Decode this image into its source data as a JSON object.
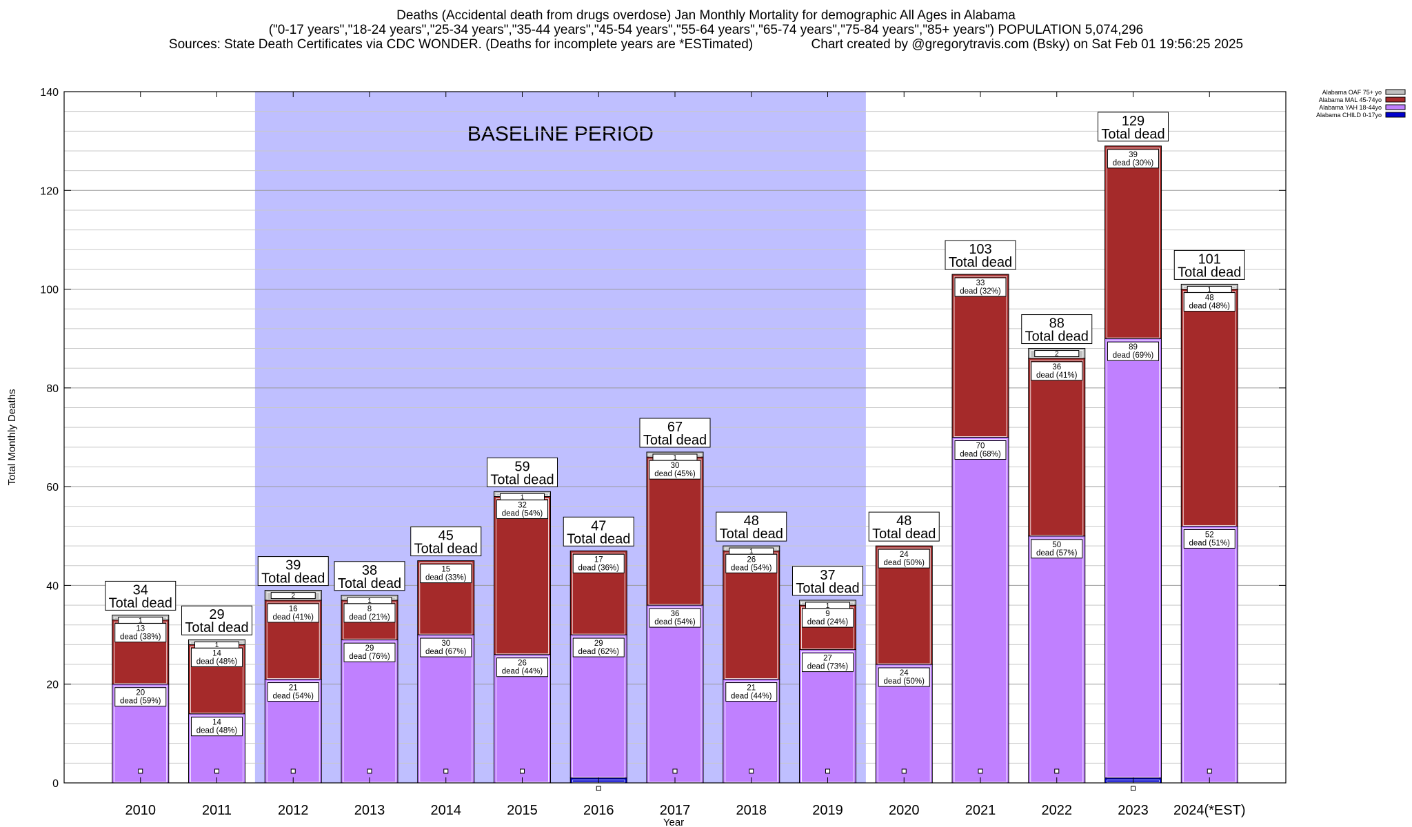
{
  "header": {
    "line1": "Deaths (Accidental death from drugs overdose) Jan Monthly Mortality for demographic All Ages in Alabama",
    "line2": "(\"0-17 years\",\"18-24 years\",\"25-34 years\",\"35-44 years\",\"45-54 years\",\"55-64 years\",\"65-74 years\",\"75-84 years\",\"85+ years\") POPULATION 5,074,296",
    "line3": "Sources: State Death Certificates via CDC WONDER. (Deaths for incomplete years are *ESTimated)                Chart created by @gregorytravis.com (Bsky) on Sat Feb 01 19:56:25 2025"
  },
  "chart_data": {
    "type": "bar",
    "stacked": true,
    "xlabel": "Year",
    "ylabel": "Total Monthly Deaths",
    "ylim": [
      0,
      140
    ],
    "yticks": [
      0,
      20,
      40,
      60,
      80,
      100,
      120,
      140
    ],
    "grid": true,
    "legend_position": "top-right",
    "baseline_label": "BASELINE PERIOD",
    "baseline_range": [
      "2012",
      "2019"
    ],
    "total_suffix": "Total dead",
    "categories": [
      "2010",
      "2011",
      "2012",
      "2013",
      "2014",
      "2015",
      "2016",
      "2017",
      "2018",
      "2019",
      "2020",
      "2021",
      "2022",
      "2023",
      "2024(*EST)"
    ],
    "totals": [
      34,
      29,
      39,
      38,
      45,
      59,
      47,
      67,
      48,
      37,
      48,
      103,
      88,
      129,
      101
    ],
    "series": [
      {
        "name": "Alabama CHILD 0-17yo",
        "color": "#0000cc",
        "values": [
          0,
          0,
          0,
          0,
          0,
          0,
          1,
          0,
          0,
          0,
          0,
          0,
          0,
          1,
          0
        ],
        "labels": [
          "",
          "",
          "",
          "",
          "",
          "",
          "",
          "",
          "",
          "",
          "",
          "",
          "",
          "",
          ""
        ]
      },
      {
        "name": "Alabama YAH 18-44yo",
        "color": "#c080ff",
        "values": [
          20,
          14,
          21,
          29,
          30,
          26,
          29,
          36,
          21,
          27,
          24,
          70,
          50,
          89,
          52
        ],
        "labels": [
          "dead (59%)",
          "dead (48%)",
          "dead (54%)",
          "dead (76%)",
          "dead (67%)",
          "dead (44%)",
          "dead (62%)",
          "dead (54%)",
          "dead (44%)",
          "dead (73%)",
          "dead (50%)",
          "dead (68%)",
          "dead (57%)",
          "dead (69%)",
          "dead (51%)"
        ]
      },
      {
        "name": "Alabama MAL 45-74yo",
        "color": "#a52a2a",
        "values": [
          13,
          14,
          16,
          8,
          15,
          32,
          17,
          30,
          26,
          9,
          24,
          33,
          36,
          39,
          48
        ],
        "labels": [
          "dead (38%)",
          "dead (48%)",
          "dead (41%)",
          "dead (21%)",
          "dead (33%)",
          "dead (54%)",
          "dead (36%)",
          "dead (45%)",
          "dead (54%)",
          "dead (24%)",
          "dead (50%)",
          "dead (32%)",
          "dead (41%)",
          "dead (30%)",
          "dead (48%)"
        ]
      },
      {
        "name": "Alabama OAF 75+ yo",
        "color": "#c0c0c0",
        "values": [
          1,
          1,
          2,
          1,
          0,
          1,
          0,
          1,
          1,
          1,
          0,
          0,
          2,
          0,
          1
        ],
        "labels": [
          "",
          "",
          "",
          "",
          "",
          "",
          "",
          "",
          "",
          "",
          "",
          "",
          "",
          "",
          ""
        ]
      }
    ]
  }
}
